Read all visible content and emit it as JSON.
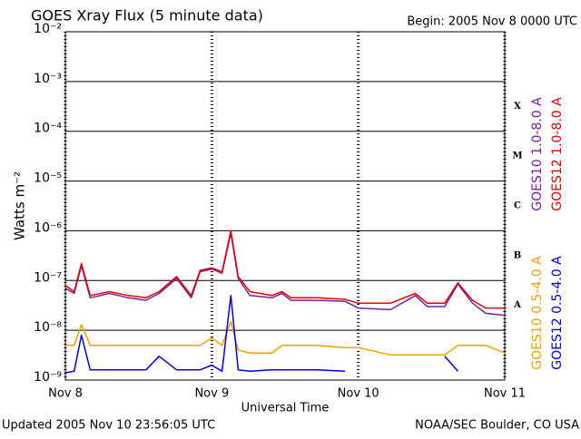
{
  "chart_data": {
    "type": "line",
    "title": "GOES Xray Flux (5 minute data)",
    "subtitle": "Begin:  2005 Nov 8 0000 UTC",
    "ylabel": "Watts m⁻²",
    "xlabel": "Universal Time",
    "footer_left": "Updated 2005 Nov 10 23:56:05 UTC",
    "footer_right": "NOAA/SEC Boulder, CO USA",
    "log_y": true,
    "grid": true,
    "flare_classes": [
      "X",
      "M",
      "C",
      "B",
      "A"
    ],
    "xlim": [
      8,
      11
    ],
    "xticks": [
      {
        "value": 8,
        "label": "Nov 8"
      },
      {
        "value": 9,
        "label": "Nov 9"
      },
      {
        "value": 10,
        "label": "Nov 10"
      },
      {
        "value": 11,
        "label": "Nov 11"
      }
    ],
    "ylim": [
      1e-09,
      0.01
    ],
    "yticks": [
      {
        "value": 0.01,
        "label": "10⁻²"
      },
      {
        "value": 0.001,
        "label": "10⁻³"
      },
      {
        "value": 0.0001,
        "label": "10⁻⁴"
      },
      {
        "value": 1e-05,
        "label": "10⁻⁵"
      },
      {
        "value": 1e-06,
        "label": "10⁻⁶"
      },
      {
        "value": 1e-07,
        "label": "10⁻⁷"
      },
      {
        "value": 1e-08,
        "label": "10⁻⁸"
      },
      {
        "value": 1e-09,
        "label": "10⁻⁹"
      }
    ],
    "x": [
      8.0,
      8.06,
      8.11,
      8.17,
      8.3,
      8.43,
      8.55,
      8.64,
      8.76,
      8.86,
      8.92,
      9.0,
      9.07,
      9.13,
      9.18,
      9.26,
      9.41,
      9.48,
      9.54,
      9.72,
      9.91,
      10.0,
      10.22,
      10.39,
      10.47,
      10.59,
      10.68,
      10.78,
      10.87,
      11.0
    ],
    "series": [
      {
        "name": "GOES10 1.0-8.0 A",
        "color": "#7a1fa2",
        "values": [
          7e-08,
          5.5e-08,
          2e-07,
          4.5e-08,
          5.5e-08,
          4.5e-08,
          4e-08,
          5.5e-08,
          1.1e-07,
          4.5e-08,
          1.5e-07,
          1.7e-07,
          1.4e-07,
          9e-07,
          1.1e-07,
          5e-08,
          4.5e-08,
          5.5e-08,
          4e-08,
          4e-08,
          3.8e-08,
          2.8e-08,
          2.6e-08,
          5e-08,
          3e-08,
          3e-08,
          8.5e-08,
          3.5e-08,
          2.2e-08,
          2e-08
        ]
      },
      {
        "name": "GOES12 1.0-8.0 A",
        "color": "#e00000",
        "values": [
          8e-08,
          6e-08,
          2.2e-07,
          5e-08,
          6e-08,
          5e-08,
          4.5e-08,
          6e-08,
          1.2e-07,
          5e-08,
          1.6e-07,
          1.8e-07,
          1.5e-07,
          1e-06,
          1.2e-07,
          6e-08,
          5e-08,
          6e-08,
          4.5e-08,
          4.5e-08,
          4.2e-08,
          3.5e-08,
          3.5e-08,
          5.5e-08,
          3.5e-08,
          3.5e-08,
          9e-08,
          4e-08,
          2.8e-08,
          2.8e-08
        ]
      },
      {
        "name": "GOES10 0.5-4.0 A",
        "color": "#f0a000",
        "values": [
          5e-09,
          5e-09,
          1.3e-08,
          5e-09,
          5e-09,
          5e-09,
          5e-09,
          5e-09,
          5e-09,
          5e-09,
          5e-09,
          7e-09,
          5e-09,
          1.5e-08,
          4e-09,
          3.5e-09,
          3.5e-09,
          5e-09,
          5e-09,
          5e-09,
          4.5e-09,
          4.5e-09,
          3.2e-09,
          3.2e-09,
          3.2e-09,
          3.2e-09,
          5e-09,
          5e-09,
          5e-09,
          3.5e-09
        ]
      },
      {
        "name": "GOES12 0.5-4.0 A",
        "color": "#0000e0",
        "values": [
          1.4e-09,
          1.5e-09,
          8e-09,
          1.6e-09,
          1.6e-09,
          1.6e-09,
          1.6e-09,
          3e-09,
          1.6e-09,
          1.6e-09,
          1.6e-09,
          2e-09,
          1.5e-09,
          5e-08,
          1.6e-09,
          1.5e-09,
          1.6e-09,
          1.6e-09,
          1.6e-09,
          1.6e-09,
          1.5e-09,
          null,
          null,
          1.5e-09,
          null,
          3e-09,
          1.5e-09,
          null,
          null,
          null
        ]
      }
    ]
  }
}
